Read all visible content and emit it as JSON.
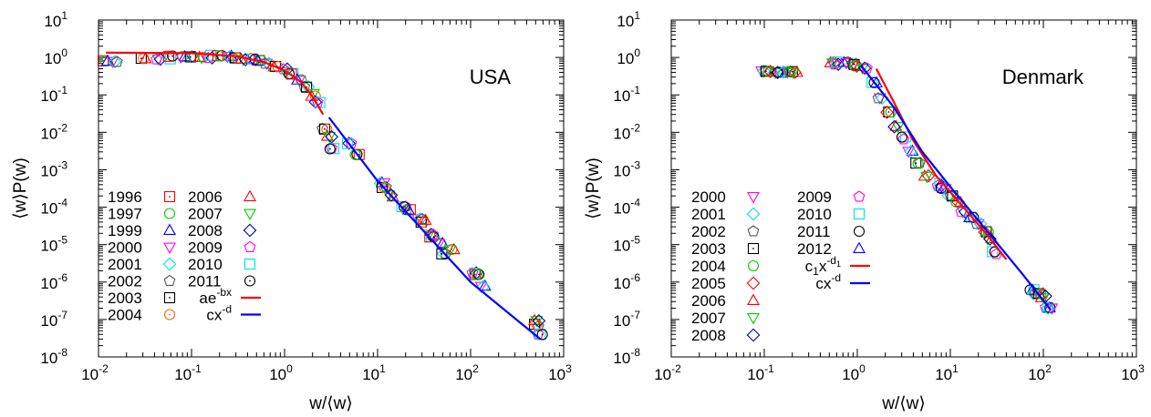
{
  "chart_data": [
    {
      "type": "scatter",
      "title": "",
      "annotation": "USA",
      "xlabel": "w/⟨w⟩",
      "ylabel": "⟨w⟩P(w)",
      "xscale": "log",
      "yscale": "log",
      "xlim": [
        0.01,
        1000
      ],
      "ylim": [
        1e-08,
        10
      ],
      "x_ticks": [
        {
          "v": 0.01,
          "base": "10",
          "exp": "-2"
        },
        {
          "v": 0.1,
          "base": "10",
          "exp": "-1"
        },
        {
          "v": 1,
          "base": "10",
          "exp": "0"
        },
        {
          "v": 10,
          "base": "10",
          "exp": "1"
        },
        {
          "v": 100,
          "base": "10",
          "exp": "2"
        },
        {
          "v": 1000,
          "base": "10",
          "exp": "3"
        }
      ],
      "y_ticks": [
        {
          "v": 1e-08,
          "base": "10",
          "exp": "-8"
        },
        {
          "v": 1e-07,
          "base": "10",
          "exp": "-7"
        },
        {
          "v": 1e-06,
          "base": "10",
          "exp": "-6"
        },
        {
          "v": 1e-05,
          "base": "10",
          "exp": "-5"
        },
        {
          "v": 0.0001,
          "base": "10",
          "exp": "-4"
        },
        {
          "v": 0.001,
          "base": "10",
          "exp": "-3"
        },
        {
          "v": 0.01,
          "base": "10",
          "exp": "-2"
        },
        {
          "v": 0.1,
          "base": "10",
          "exp": "-1"
        },
        {
          "v": 1,
          "base": "10",
          "exp": "0"
        },
        {
          "v": 10,
          "base": "10",
          "exp": "1"
        }
      ],
      "legend_position": "bottom-left",
      "legend_columns": 2,
      "legend_rows": 8,
      "series": [
        {
          "name": "1996",
          "marker": "dotted-square",
          "color": "#ff0000"
        },
        {
          "name": "1997",
          "marker": "circle",
          "color": "#00cc00"
        },
        {
          "name": "1999",
          "marker": "triangle-up",
          "color": "#0000ff"
        },
        {
          "name": "2000",
          "marker": "triangle-down",
          "color": "#ff00ff"
        },
        {
          "name": "2001",
          "marker": "diamond",
          "color": "#00e0e0"
        },
        {
          "name": "2002",
          "marker": "pentagon",
          "color": "#555555"
        },
        {
          "name": "2003",
          "marker": "dotted-square",
          "color": "#000000"
        },
        {
          "name": "2004",
          "marker": "dotted-circle",
          "color": "#ff6600"
        },
        {
          "name": "2006",
          "marker": "triangle-up",
          "color": "#ff0000"
        },
        {
          "name": "2007",
          "marker": "triangle-down",
          "color": "#00cc00"
        },
        {
          "name": "2008",
          "marker": "diamond",
          "color": "#0000aa"
        },
        {
          "name": "2009",
          "marker": "pentagon",
          "color": "#ff00ff"
        },
        {
          "name": "2010",
          "marker": "square",
          "color": "#00e0e0"
        },
        {
          "name": "2011",
          "marker": "dotted-circle",
          "color": "#000000"
        }
      ],
      "fit_lines": [
        {
          "label": "ae",
          "label_sup": "-bx",
          "color": "#ff0000",
          "points": [
            [
              0.012,
              1.35
            ],
            [
              0.1,
              1.3
            ],
            [
              0.3,
              1.08
            ],
            [
              0.6,
              0.75
            ],
            [
              1.0,
              0.45
            ],
            [
              1.5,
              0.22
            ],
            [
              2.0,
              0.09
            ],
            [
              2.6,
              0.03
            ]
          ]
        },
        {
          "label": "cx",
          "label_sup": "-d",
          "color": "#0000ff",
          "points": [
            [
              3.0,
              0.025
            ],
            [
              10,
              0.0005
            ],
            [
              100,
              1e-06
            ],
            [
              560,
              3e-08
            ]
          ]
        }
      ],
      "point_groups": [
        {
          "x": [
            0.012,
            0.015,
            0.03,
            0.045,
            0.06,
            0.08,
            0.1,
            0.13,
            0.16,
            0.2,
            0.25,
            0.3,
            0.36,
            0.45,
            0.55,
            0.65,
            0.8,
            1.0,
            1.2,
            1.45,
            1.7,
            2.0,
            2.3
          ],
          "y": [
            0.75,
            0.75,
            0.95,
            0.95,
            1.0,
            1.0,
            1.05,
            1.05,
            1.05,
            1.05,
            1.05,
            1.0,
            0.95,
            0.85,
            0.8,
            0.7,
            0.6,
            0.45,
            0.35,
            0.25,
            0.17,
            0.1,
            0.06
          ],
          "spread": 0.25
        },
        {
          "x": [
            2.7,
            3.0,
            3.3
          ],
          "y": [
            0.012,
            0.008,
            0.004
          ],
          "spread": 0.3
        },
        {
          "x": [
            5.0,
            6.0,
            11,
            12,
            14,
            19,
            21,
            29,
            31,
            37,
            39,
            48,
            51,
            62,
            112,
            118,
            135,
            500,
            520,
            560
          ],
          "y": [
            0.0048,
            0.0025,
            0.00045,
            0.00035,
            0.0002,
            0.0001,
            8.5e-05,
            5e-05,
            4.2e-05,
            1.8e-05,
            1.6e-05,
            1.1e-05,
            6e-06,
            7e-06,
            1.7e-06,
            1.6e-06,
            8e-07,
            7e-08,
            9e-08,
            4e-08
          ],
          "spread": 0.18
        }
      ]
    },
    {
      "type": "scatter",
      "title": "",
      "annotation": "Denmark",
      "xlabel": "w/⟨w⟩",
      "ylabel": "⟨w⟩P(w)",
      "xscale": "log",
      "yscale": "log",
      "xlim": [
        0.01,
        1000
      ],
      "ylim": [
        1e-08,
        10
      ],
      "x_ticks": [
        {
          "v": 0.01,
          "base": "10",
          "exp": "-2"
        },
        {
          "v": 0.1,
          "base": "10",
          "exp": "-1"
        },
        {
          "v": 1,
          "base": "10",
          "exp": "0"
        },
        {
          "v": 10,
          "base": "10",
          "exp": "1"
        },
        {
          "v": 100,
          "base": "10",
          "exp": "2"
        },
        {
          "v": 1000,
          "base": "10",
          "exp": "3"
        }
      ],
      "y_ticks": [
        {
          "v": 1e-08,
          "base": "10",
          "exp": "-8"
        },
        {
          "v": 1e-07,
          "base": "10",
          "exp": "-7"
        },
        {
          "v": 1e-06,
          "base": "10",
          "exp": "-6"
        },
        {
          "v": 1e-05,
          "base": "10",
          "exp": "-5"
        },
        {
          "v": 0.0001,
          "base": "10",
          "exp": "-4"
        },
        {
          "v": 0.001,
          "base": "10",
          "exp": "-3"
        },
        {
          "v": 0.01,
          "base": "10",
          "exp": "-2"
        },
        {
          "v": 0.1,
          "base": "10",
          "exp": "-1"
        },
        {
          "v": 1,
          "base": "10",
          "exp": "0"
        },
        {
          "v": 10,
          "base": "10",
          "exp": "1"
        }
      ],
      "legend_position": "bottom-left",
      "legend_columns": 2,
      "legend_rows": 9,
      "series": [
        {
          "name": "2000",
          "marker": "triangle-down",
          "color": "#ff00ff"
        },
        {
          "name": "2001",
          "marker": "diamond",
          "color": "#00e0e0"
        },
        {
          "name": "2002",
          "marker": "pentagon",
          "color": "#555555"
        },
        {
          "name": "2003",
          "marker": "dotted-square",
          "color": "#000000"
        },
        {
          "name": "2004",
          "marker": "circle",
          "color": "#00cc00"
        },
        {
          "name": "2005",
          "marker": "diamond",
          "color": "#ff0000"
        },
        {
          "name": "2006",
          "marker": "triangle-up",
          "color": "#ff0000"
        },
        {
          "name": "2007",
          "marker": "triangle-down",
          "color": "#00cc00"
        },
        {
          "name": "2008",
          "marker": "diamond",
          "color": "#0000aa"
        },
        {
          "name": "2009",
          "marker": "pentagon",
          "color": "#ff00ff"
        },
        {
          "name": "2010",
          "marker": "square",
          "color": "#00e0e0"
        },
        {
          "name": "2011",
          "marker": "circle",
          "color": "#000000"
        },
        {
          "name": "2012",
          "marker": "triangle-up",
          "color": "#0000ff"
        }
      ],
      "fit_lines": [
        {
          "label": "c",
          "label_sub": "1",
          "label_mid": "x",
          "label_sup": "-d",
          "label_supsub": "1",
          "color": "#ff0000",
          "points": [
            [
              1.6,
              0.5
            ],
            [
              2.5,
              0.06
            ],
            [
              4,
              0.006
            ],
            [
              7,
              0.0007
            ],
            [
              12,
              0.00015
            ],
            [
              25,
              1.8e-05
            ],
            [
              40,
              4e-06
            ]
          ]
        },
        {
          "label": "cx",
          "label_sup": "-d",
          "color": "#0000ff",
          "points": [
            [
              1.1,
              0.6
            ],
            [
              2.5,
              0.045
            ],
            [
              5,
              0.003
            ],
            [
              10,
              0.00035
            ],
            [
              30,
              1.3e-05
            ],
            [
              60,
              1.6e-06
            ],
            [
              120,
              1.8e-07
            ]
          ]
        }
      ],
      "point_groups": [
        {
          "x": [
            0.1,
            0.11,
            0.13,
            0.15,
            0.17,
            0.19,
            0.21
          ],
          "y": [
            0.42,
            0.42,
            0.4,
            0.41,
            0.4,
            0.41,
            0.4
          ],
          "spread": 0.1
        },
        {
          "x": [
            0.55,
            0.6,
            0.75,
            0.9,
            1.0,
            1.2,
            1.5,
            1.8,
            2.2,
            2.6,
            3.1,
            3.8,
            4.5,
            5.5,
            7.5,
            8.5,
            10,
            12,
            14,
            17,
            20,
            24,
            27,
            30
          ],
          "y": [
            0.75,
            0.7,
            0.7,
            0.65,
            0.6,
            0.55,
            0.2,
            0.08,
            0.035,
            0.015,
            0.007,
            0.003,
            0.0015,
            0.0007,
            0.0004,
            0.0003,
            0.0002,
            0.00014,
            8e-05,
            5e-05,
            3.5e-05,
            2.2e-05,
            1.5e-05,
            6e-06
          ],
          "spread": 0.22
        },
        {
          "x": [
            75,
            80,
            95,
            100,
            110,
            120
          ],
          "y": [
            6e-07,
            5e-07,
            5e-07,
            4e-07,
            2e-07,
            2e-07
          ],
          "spread": 0.15
        }
      ]
    }
  ]
}
